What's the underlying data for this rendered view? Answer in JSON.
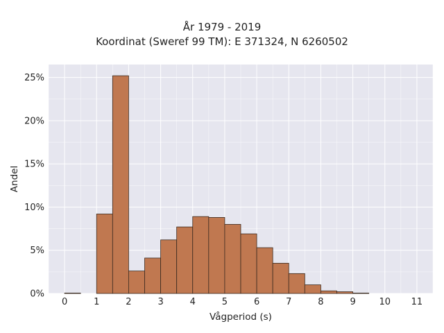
{
  "chart_data": {
    "type": "bar",
    "title": "År 1979 - 2019",
    "subtitle": "Koordinat (Sweref 99 TM): E 371324, N 6260502",
    "xlabel": "Vågperiod (s)",
    "ylabel": "Andel",
    "bin_width": 0.5,
    "bin_starts": [
      0,
      0.5,
      1,
      1.5,
      2,
      2.5,
      3,
      3.5,
      4,
      4.5,
      5,
      5.5,
      6,
      6.5,
      7,
      7.5,
      8,
      8.5,
      9,
      9.5,
      10,
      10.5
    ],
    "values": [
      0.05,
      0,
      9.2,
      25.2,
      2.6,
      4.1,
      6.2,
      7.7,
      8.9,
      8.8,
      8.0,
      6.9,
      5.3,
      3.5,
      2.3,
      1.0,
      0.3,
      0.2,
      0.05,
      0,
      0,
      0
    ],
    "value_unit": "%",
    "xlim": [
      -0.5,
      11.5
    ],
    "ylim": [
      0,
      26.5
    ],
    "xticks": [
      "0",
      "1",
      "2",
      "3",
      "4",
      "5",
      "6",
      "7",
      "8",
      "9",
      "10",
      "11"
    ],
    "yticks": [
      "0%",
      "5%",
      "10%",
      "15%",
      "20%",
      "25%"
    ],
    "bar_color": "#c07850",
    "edge_color": "#3a2a20",
    "plot_background": "#e6e6ef",
    "grid": true
  }
}
